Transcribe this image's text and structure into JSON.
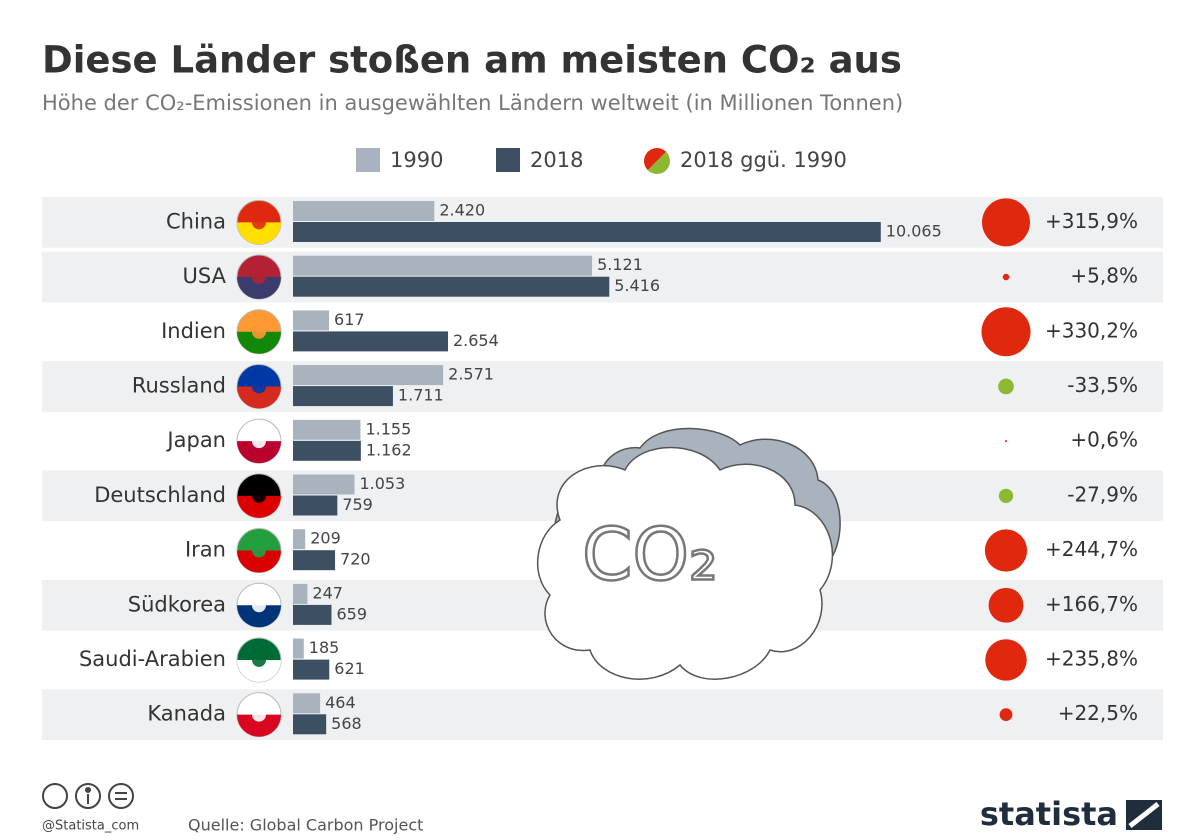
{
  "chart_data": {
    "type": "bar",
    "title": "Diese Länder stoßen am meisten CO₂ aus",
    "subtitle": "Höhe der CO₂-Emissionen in ausgewählten Ländern weltweit (in Millionen Tonnen)",
    "orientation": "horizontal",
    "categories": [
      "China",
      "USA",
      "Indien",
      "Russland",
      "Japan",
      "Deutschland",
      "Iran",
      "Südkorea",
      "Saudi-Arabien",
      "Kanada"
    ],
    "series": [
      {
        "name": "1990",
        "color": "#a9b3bd",
        "values": [
          2420,
          5121,
          617,
          2571,
          1155,
          1053,
          209,
          247,
          185,
          464
        ],
        "value_labels": [
          "2.420",
          "5.121",
          "617",
          "2.571",
          "1.155",
          "1.053",
          "209",
          "247",
          "185",
          "464"
        ]
      },
      {
        "name": "2018",
        "color": "#3d4f62",
        "values": [
          10065,
          5416,
          2654,
          1711,
          1162,
          759,
          720,
          659,
          621,
          568
        ],
        "value_labels": [
          "10.065",
          "5.416",
          "2.654",
          "1.711",
          "1.162",
          "759",
          "720",
          "659",
          "621",
          "568"
        ]
      }
    ],
    "change": {
      "name": "2018 ggü. 1990",
      "positive_color": "#e0280f",
      "negative_color": "#8cb832",
      "values": [
        315.9,
        5.8,
        330.2,
        -33.5,
        0.6,
        -27.9,
        244.7,
        166.7,
        235.8,
        22.5
      ],
      "value_labels": [
        "+315,9%",
        "+5,8%",
        "+330,2%",
        "-33,5%",
        "+0,6%",
        "-27,9%",
        "+244,7%",
        "+166,7%",
        "+235,8%",
        "+22,5%"
      ]
    },
    "illustration_label": "CO₂",
    "footer": {
      "handle": "@Statista_com",
      "source": "Quelle: Global Carbon Project",
      "brand": "statista"
    }
  }
}
